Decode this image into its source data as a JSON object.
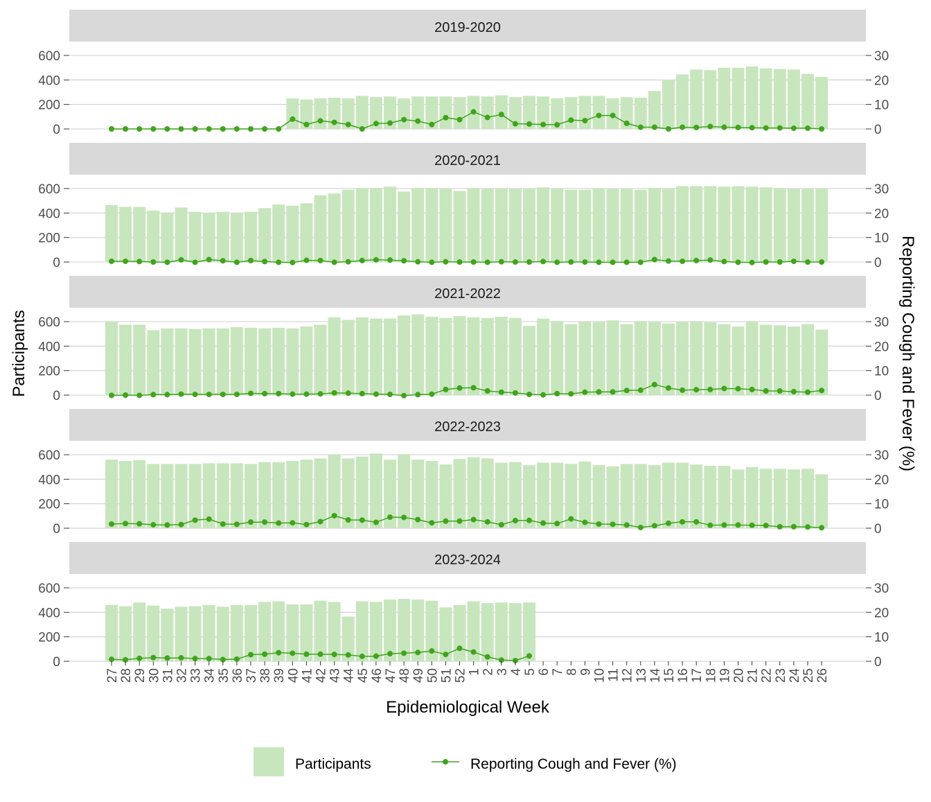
{
  "chart_data": {
    "type": "bar+line",
    "x_label": "Epidemiological Week",
    "y_left_label": "Participants",
    "y_right_label": "Reporting Cough and Fever (%)",
    "y_left_ticks": [
      0,
      200,
      400,
      600
    ],
    "y_right_ticks": [
      0,
      10,
      20,
      30
    ],
    "y_left_range": [
      0,
      700
    ],
    "y_right_range": [
      0,
      35
    ],
    "weeks": [
      "27",
      "28",
      "29",
      "30",
      "31",
      "32",
      "33",
      "34",
      "35",
      "36",
      "37",
      "38",
      "39",
      "40",
      "41",
      "42",
      "43",
      "44",
      "45",
      "46",
      "47",
      "48",
      "49",
      "50",
      "51",
      "52",
      "1",
      "2",
      "3",
      "4",
      "5",
      "6",
      "7",
      "8",
      "9",
      "10",
      "11",
      "12",
      "13",
      "14",
      "15",
      "16",
      "17",
      "18",
      "19",
      "20",
      "21",
      "22",
      "23",
      "24",
      "25",
      "26"
    ],
    "colors": {
      "bar": "#c8e6bd",
      "line": "#41a31e",
      "strip": "#d9d9d9",
      "grid": "#d6d6d6"
    },
    "legend": {
      "bar_label": "Participants",
      "line_label": "Reporting Cough and Fever (%)",
      "position": "bottom"
    },
    "panels": [
      {
        "season": "2019-2020",
        "participants": [
          null,
          null,
          null,
          null,
          null,
          null,
          null,
          null,
          null,
          null,
          null,
          null,
          null,
          250,
          240,
          250,
          255,
          250,
          270,
          260,
          265,
          250,
          265,
          265,
          265,
          260,
          270,
          265,
          275,
          260,
          270,
          265,
          250,
          260,
          270,
          270,
          250,
          260,
          255,
          310,
          400,
          445,
          485,
          480,
          500,
          500,
          510,
          495,
          490,
          485,
          450,
          425
        ],
        "cough_fever": [
          0,
          0,
          0,
          0,
          0,
          0,
          0,
          0,
          0,
          0,
          0,
          0,
          0,
          4,
          1.8,
          3.3,
          2.7,
          1.8,
          0,
          2.2,
          2.4,
          3.8,
          3.2,
          1.8,
          4.6,
          3.8,
          7,
          4.7,
          5.9,
          2.1,
          2,
          1.8,
          1.7,
          3.6,
          3.4,
          5.5,
          5.5,
          2.3,
          0.7,
          0.7,
          0,
          0.7,
          0.6,
          1,
          0.7,
          0.6,
          0.5,
          0.4,
          0.4,
          0.3,
          0.3,
          0
        ]
      },
      {
        "season": "2020-2021",
        "participants": [
          465,
          450,
          450,
          420,
          400,
          445,
          410,
          400,
          410,
          400,
          410,
          440,
          470,
          460,
          480,
          545,
          560,
          590,
          605,
          605,
          615,
          575,
          605,
          605,
          600,
          580,
          605,
          600,
          600,
          600,
          600,
          610,
          600,
          590,
          590,
          600,
          600,
          600,
          590,
          605,
          600,
          620,
          620,
          620,
          615,
          620,
          615,
          610,
          605,
          600,
          600,
          600
        ],
        "cough_fever": [
          0.3,
          0.3,
          0.2,
          0,
          -0.1,
          0.9,
          -0.1,
          1,
          0.5,
          -0.1,
          0.6,
          0.2,
          -0.1,
          -0.2,
          0.7,
          0.6,
          -0.1,
          0.1,
          0.6,
          0.9,
          0.8,
          0.5,
          0.1,
          -0.1,
          0.1,
          0,
          0,
          -0.1,
          0.1,
          0,
          0,
          0.2,
          -0.1,
          0,
          0,
          -0.1,
          -0.1,
          -0.1,
          -0.1,
          1,
          0.4,
          0.3,
          0.6,
          0.8,
          0.2,
          -0.1,
          -0.2,
          0,
          0,
          0.3,
          0,
          0
        ]
      },
      {
        "season": "2021-2022",
        "participants": [
          600,
          575,
          575,
          530,
          545,
          545,
          540,
          545,
          545,
          555,
          550,
          545,
          550,
          545,
          560,
          575,
          635,
          615,
          635,
          625,
          625,
          650,
          660,
          640,
          630,
          645,
          635,
          630,
          640,
          630,
          565,
          625,
          605,
          580,
          600,
          600,
          610,
          580,
          605,
          600,
          585,
          600,
          600,
          595,
          580,
          560,
          600,
          575,
          570,
          560,
          580,
          535
        ],
        "cough_fever": [
          -0.1,
          0,
          -0.1,
          0.2,
          0.2,
          0.4,
          0.3,
          0.3,
          0.3,
          0.3,
          0.7,
          0.6,
          0.6,
          0.4,
          0.4,
          0.5,
          0.9,
          0.8,
          0.6,
          0.4,
          0.3,
          -0.2,
          0.2,
          0.4,
          2.3,
          2.9,
          3,
          1.7,
          1.2,
          0.9,
          0.3,
          0.1,
          0.6,
          0.5,
          1.2,
          1.3,
          1.3,
          1.9,
          2,
          4.3,
          2.9,
          2,
          2.2,
          2.3,
          2.7,
          2.6,
          2.3,
          1.7,
          1.7,
          1.4,
          1.2,
          1.9
        ]
      },
      {
        "season": "2022-2023",
        "participants": [
          560,
          550,
          555,
          525,
          525,
          525,
          525,
          530,
          530,
          530,
          525,
          540,
          540,
          550,
          560,
          570,
          600,
          570,
          585,
          610,
          560,
          605,
          560,
          550,
          520,
          565,
          580,
          570,
          535,
          540,
          515,
          535,
          535,
          525,
          545,
          515,
          505,
          525,
          525,
          515,
          535,
          535,
          520,
          510,
          510,
          480,
          500,
          485,
          485,
          480,
          485,
          440
        ],
        "cough_fever": [
          1.7,
          1.9,
          1.8,
          1.4,
          1.3,
          1.5,
          3.3,
          3.7,
          1.7,
          1.6,
          2.5,
          2.5,
          2.1,
          2.2,
          1.5,
          2.7,
          5.1,
          3.4,
          3.3,
          2.4,
          4.5,
          4.4,
          3.5,
          2.2,
          2.9,
          2.9,
          3.5,
          2.6,
          1.4,
          3.1,
          3.2,
          2.1,
          1.9,
          3.8,
          2.4,
          1.7,
          1.6,
          1.3,
          0.3,
          1,
          2,
          2.6,
          2.6,
          1.2,
          1.3,
          1.3,
          1.2,
          1.1,
          0.6,
          0.6,
          0.5,
          0.2
        ]
      },
      {
        "season": "2023-2024",
        "participants": [
          460,
          450,
          480,
          455,
          430,
          445,
          450,
          460,
          445,
          460,
          460,
          485,
          490,
          465,
          465,
          495,
          485,
          365,
          490,
          485,
          505,
          510,
          505,
          495,
          440,
          460,
          490,
          475,
          480,
          475,
          480,
          null,
          null,
          null,
          null,
          null,
          null,
          null,
          null,
          null,
          null,
          null,
          null,
          null,
          null,
          null,
          null,
          null,
          null,
          null,
          null,
          null
        ],
        "cough_fever": [
          0.8,
          0.6,
          1.2,
          1.5,
          1.3,
          1.4,
          1.1,
          1.1,
          0.7,
          0.9,
          2.7,
          2.9,
          3.5,
          3.3,
          2.9,
          2.9,
          2.8,
          2.6,
          2,
          2.1,
          3.1,
          3.3,
          3.6,
          4.2,
          2.8,
          5.3,
          3.8,
          1.8,
          0.5,
          0.3,
          2.2,
          null,
          null,
          null,
          null,
          null,
          null,
          null,
          null,
          null,
          null,
          null,
          null,
          null,
          null,
          null,
          null,
          null,
          null,
          null,
          null,
          null
        ]
      }
    ]
  }
}
